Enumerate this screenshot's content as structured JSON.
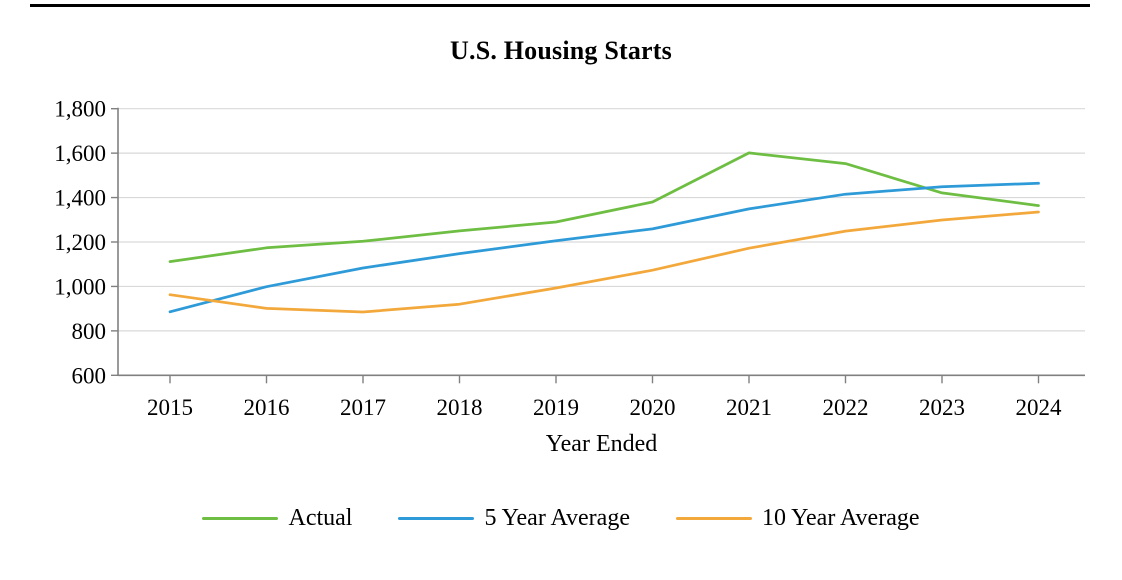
{
  "chart_data": {
    "type": "line",
    "title": "U.S. Housing Starts",
    "xlabel": "Year Ended",
    "ylabel": "",
    "categories": [
      "2015",
      "2016",
      "2017",
      "2018",
      "2019",
      "2020",
      "2021",
      "2022",
      "2023",
      "2024"
    ],
    "series": [
      {
        "name": "Actual",
        "color": "#6FBE44",
        "values": [
          1112,
          1174,
          1203,
          1250,
          1290,
          1380,
          1601,
          1553,
          1421,
          1364
        ]
      },
      {
        "name": "5 Year Average",
        "color": "#2E9BD8",
        "values": [
          886,
          999,
          1083,
          1148,
          1206,
          1259,
          1349,
          1415,
          1449,
          1464
        ]
      },
      {
        "name": "10 Year Average",
        "color": "#F3A83C",
        "values": [
          963,
          901,
          885,
          920,
          993,
          1073,
          1172,
          1249,
          1299,
          1335
        ]
      }
    ],
    "ylim": [
      600,
      1800
    ],
    "y_tick_step": 200,
    "y_tick_labels": [
      "600",
      "800",
      "1,000",
      "1,200",
      "1,400",
      "1,600",
      "1,800"
    ],
    "grid": "horizontal-gridlines",
    "legend_position": "bottom",
    "axis_color": "#808080",
    "gridline_color": "#D9D9D9"
  }
}
